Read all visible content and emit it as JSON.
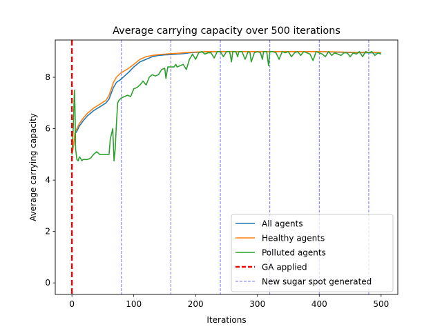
{
  "chart_data": {
    "type": "line",
    "title": "Average carrying capacity over 500 iterations",
    "xlabel": "Iterations",
    "ylabel": "Average carrying capacity",
    "xlim": [
      -27,
      527
    ],
    "ylim": [
      -0.45,
      9.45
    ],
    "xticks": [
      0,
      100,
      200,
      300,
      400,
      500
    ],
    "yticks": [
      0,
      2,
      4,
      6,
      8
    ],
    "grid": false,
    "legend_position": "lower-right",
    "series": [
      {
        "name": "All agents",
        "color": "#1f77b4",
        "x": [
          0,
          3,
          5,
          8,
          12,
          18,
          25,
          35,
          45,
          55,
          60,
          63,
          67,
          72,
          78,
          85,
          92,
          100,
          110,
          120,
          130,
          140,
          150,
          160,
          170,
          180,
          190,
          200,
          210,
          220,
          230,
          240,
          260,
          280,
          300,
          320,
          340,
          360,
          380,
          400,
          420,
          440,
          460,
          480,
          500
        ],
        "values": [
          5.0,
          5.4,
          5.8,
          5.9,
          6.1,
          6.3,
          6.5,
          6.7,
          6.85,
          7.0,
          7.15,
          7.35,
          7.6,
          7.8,
          7.9,
          8.05,
          8.2,
          8.4,
          8.6,
          8.7,
          8.8,
          8.85,
          8.87,
          8.88,
          8.9,
          8.92,
          8.95,
          8.97,
          8.98,
          8.99,
          8.99,
          9.0,
          9.0,
          9.0,
          9.0,
          9.0,
          9.0,
          9.0,
          9.0,
          9.0,
          8.98,
          8.97,
          8.96,
          8.95,
          8.95
        ]
      },
      {
        "name": "Healthy agents",
        "color": "#ff7f0e",
        "x": [
          0,
          3,
          5,
          8,
          12,
          18,
          25,
          35,
          45,
          55,
          60,
          63,
          67,
          72,
          78,
          85,
          92,
          100,
          110,
          120,
          130,
          140,
          150,
          160,
          170,
          180,
          190,
          200,
          210,
          220,
          230,
          240,
          260,
          280,
          300,
          320,
          340,
          360,
          380,
          400,
          420,
          440,
          460,
          480,
          500
        ],
        "values": [
          5.0,
          5.45,
          5.85,
          6.0,
          6.2,
          6.4,
          6.6,
          6.8,
          6.95,
          7.1,
          7.3,
          7.5,
          7.8,
          8.0,
          8.15,
          8.25,
          8.35,
          8.5,
          8.7,
          8.8,
          8.85,
          8.88,
          8.9,
          8.92,
          8.93,
          8.95,
          8.97,
          8.98,
          8.99,
          9.0,
          9.0,
          9.0,
          9.0,
          9.0,
          9.0,
          9.0,
          9.0,
          9.0,
          9.0,
          9.0,
          8.99,
          8.98,
          8.97,
          8.97,
          8.96
        ]
      },
      {
        "name": "Polluted agents",
        "color": "#2ca02c",
        "x": [
          0,
          2,
          4,
          5,
          6,
          8,
          10,
          12,
          14,
          16,
          18,
          20,
          25,
          30,
          35,
          40,
          45,
          50,
          55,
          60,
          62,
          64,
          66,
          68,
          70,
          72,
          74,
          76,
          80,
          85,
          90,
          95,
          100,
          105,
          110,
          115,
          120,
          125,
          130,
          135,
          140,
          145,
          150,
          152,
          155,
          160,
          165,
          168,
          170,
          175,
          180,
          185,
          190,
          195,
          200,
          205,
          210,
          215,
          220,
          225,
          230,
          235,
          240,
          245,
          250,
          255,
          258,
          260,
          265,
          268,
          270,
          275,
          280,
          285,
          288,
          290,
          295,
          300,
          305,
          308,
          310,
          315,
          318,
          320,
          325,
          330,
          335,
          340,
          345,
          350,
          355,
          360,
          365,
          370,
          375,
          380,
          385,
          390,
          395,
          400,
          405,
          410,
          415,
          420,
          425,
          430,
          435,
          440,
          445,
          450,
          455,
          460,
          465,
          470,
          475,
          480,
          485,
          490,
          495,
          500
        ],
        "values": [
          5.0,
          6.0,
          7.5,
          6.8,
          5.2,
          4.8,
          4.75,
          4.9,
          4.85,
          4.75,
          4.8,
          4.8,
          4.8,
          4.85,
          5.0,
          5.1,
          5.0,
          5.0,
          5.0,
          5.0,
          5.6,
          5.8,
          6.0,
          4.75,
          5.2,
          6.2,
          7.0,
          7.1,
          7.2,
          7.25,
          7.3,
          7.25,
          7.55,
          7.6,
          7.7,
          7.85,
          7.7,
          8.0,
          8.1,
          8.05,
          8.1,
          8.3,
          8.35,
          7.95,
          8.4,
          8.4,
          8.4,
          8.5,
          8.4,
          8.45,
          8.5,
          8.3,
          8.7,
          8.9,
          8.7,
          8.95,
          9.0,
          8.9,
          8.95,
          8.95,
          8.75,
          9.0,
          9.0,
          8.8,
          9.0,
          9.0,
          8.6,
          9.0,
          9.0,
          8.8,
          9.0,
          9.0,
          8.7,
          9.0,
          8.95,
          8.6,
          8.95,
          9.0,
          8.95,
          8.7,
          9.0,
          9.0,
          8.45,
          9.0,
          9.0,
          8.95,
          8.7,
          9.0,
          8.95,
          9.0,
          8.8,
          8.95,
          9.0,
          8.85,
          9.0,
          8.95,
          8.9,
          8.65,
          9.0,
          8.95,
          8.9,
          8.8,
          9.0,
          8.85,
          8.95,
          8.9,
          8.85,
          8.95,
          8.95,
          8.8,
          8.95,
          8.9,
          9.0,
          8.8,
          9.0,
          8.95,
          9.0,
          8.85,
          8.95,
          8.9
        ]
      }
    ],
    "vertical_markers": [
      {
        "name": "GA applied",
        "x": [
          0
        ],
        "color": "#ff0000",
        "style": "dashed-thick"
      },
      {
        "name": "New sugar spot generated",
        "x": [
          80,
          160,
          240,
          320,
          400,
          480
        ],
        "color": "#0000ff",
        "style": "dashed-thin"
      }
    ]
  }
}
